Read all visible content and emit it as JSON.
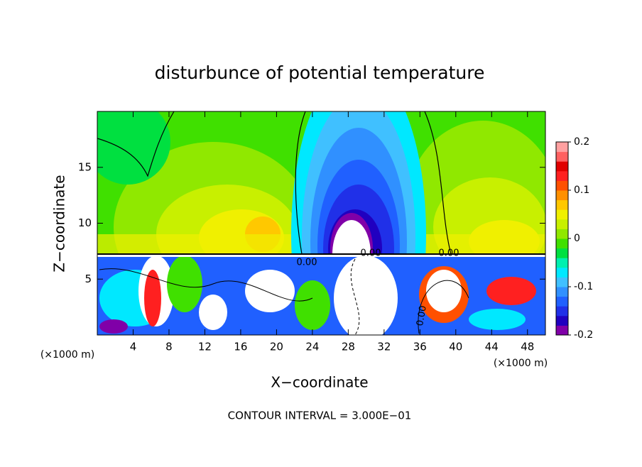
{
  "chart_data": {
    "type": "contour",
    "title": "disturbunce of potential temperature",
    "x_label": "X−coordinate",
    "y_label": "Z−coordinate",
    "x_unit_labels": [
      "(×1000 m)",
      "(×1000 m)"
    ],
    "footer": "CONTOUR INTERVAL = 3.000E−01",
    "contour_labels": [
      "0.00",
      "0.00",
      "0.00",
      "0.00"
    ],
    "xlim": [
      0,
      50
    ],
    "xticks": [
      4,
      8,
      12,
      16,
      20,
      24,
      28,
      32,
      36,
      40,
      44,
      48
    ],
    "ylim": [
      0,
      20
    ],
    "yticks": [
      5,
      10,
      15
    ],
    "colorbar": {
      "lim": [
        -0.2,
        0.2
      ],
      "ticks": [
        -0.2,
        -0.1,
        0,
        0.1,
        0.2
      ],
      "colors": [
        "#8000a8",
        "#2000c0",
        "#2030e8",
        "#2060ff",
        "#3090ff",
        "#40c0ff",
        "#00e8ff",
        "#00f0b0",
        "#00e040",
        "#40e000",
        "#90e800",
        "#c8f000",
        "#f0f000",
        "#ffc800",
        "#ff9000",
        "#ff5000",
        "#ff2020",
        "#e00000",
        "#ff6060",
        "#ffa0a0"
      ]
    }
  }
}
